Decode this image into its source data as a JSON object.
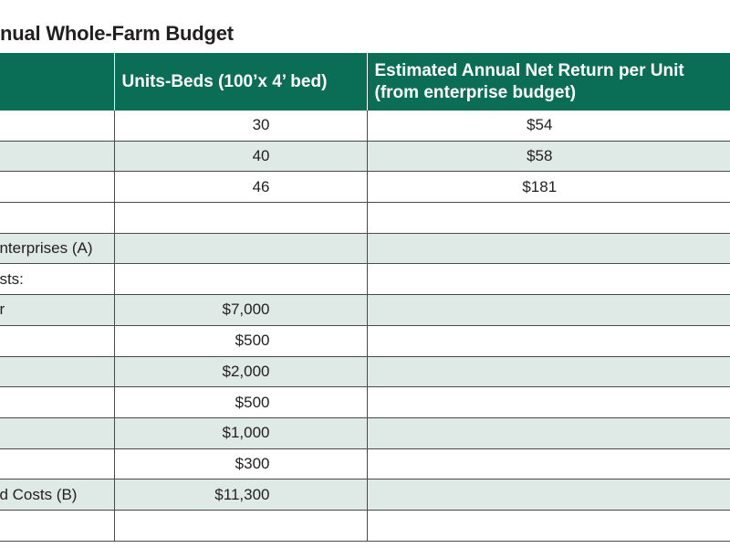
{
  "title": "nual Whole-Farm Budget",
  "table": {
    "headers": [
      "",
      "Units-Beds (100’x 4’ bed)",
      "Estimated Annual Net Return per Unit\n(from enterprise budget)"
    ],
    "header_line1": "Estimated Annual Net Return per Unit",
    "header_line2": "(from enterprise budget)",
    "rows": [
      {
        "label": "",
        "units": "30",
        "return": "$54"
      },
      {
        "label": "",
        "units": "40",
        "return": "$58"
      },
      {
        "label": "",
        "units": "46",
        "return": "$181"
      },
      {
        "label": "",
        "units": "",
        "return": ""
      },
      {
        "label": "enterprises (A)",
        "units": "",
        "return": ""
      },
      {
        "label": "osts:",
        "units": "",
        "return": ""
      },
      {
        "label": "or",
        "units": "$7,000",
        "return": ""
      },
      {
        "label": "",
        "units": "$500",
        "return": ""
      },
      {
        "label": "",
        "units": "$2,000",
        "return": ""
      },
      {
        "label": "",
        "units": "$500",
        "return": ""
      },
      {
        "label": "",
        "units": "$1,000",
        "return": ""
      },
      {
        "label": "",
        "units": "$300",
        "return": ""
      },
      {
        "label": "ad Costs (B)",
        "units": "$11,300",
        "return": ""
      },
      {
        "label": "",
        "units": "",
        "return": ""
      }
    ]
  },
  "colors": {
    "header_bg": "#0a6e57",
    "alt_row_bg": "#dfe9e5"
  }
}
